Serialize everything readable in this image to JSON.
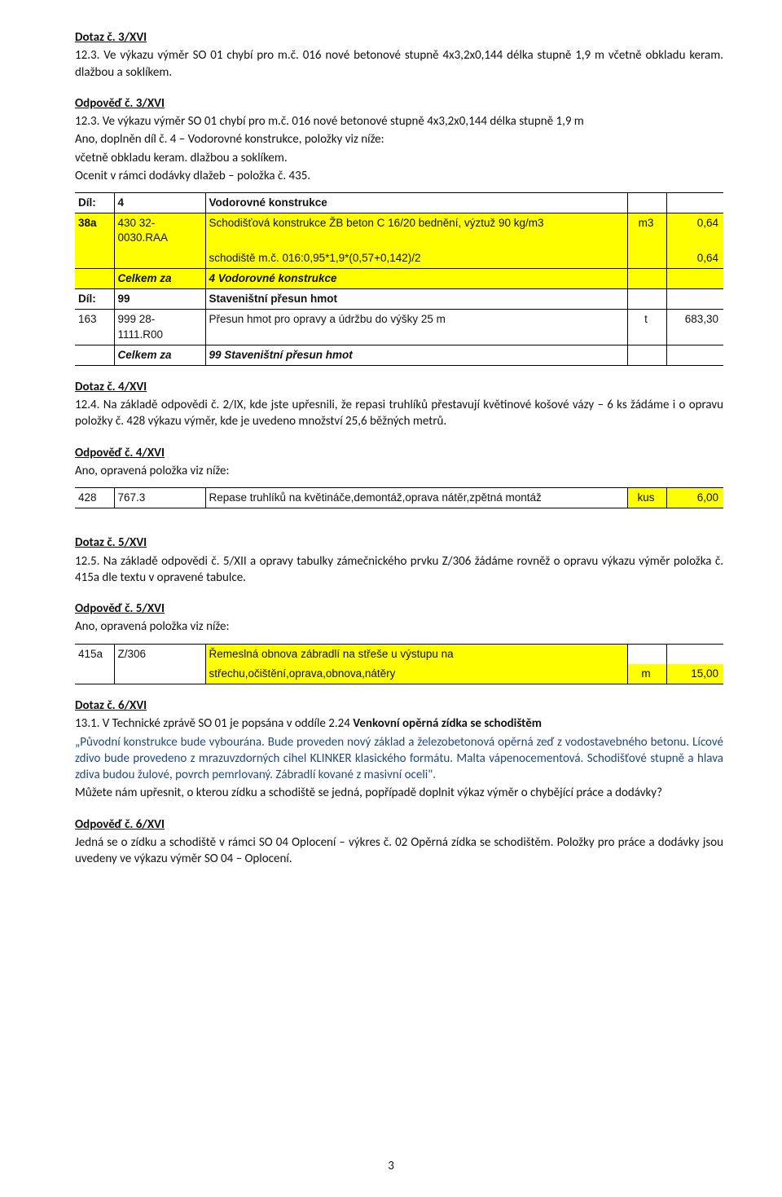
{
  "q3": {
    "title": "Dotaz č. 3/XVI",
    "text": "12.3. Ve výkazu výměr SO 01 chybí pro m.č. 016 nové betonové stupně 4x3,2x0,144 délka stupně 1,9 m včetně obkladu keram. dlažbou a soklíkem."
  },
  "a3": {
    "title": "Odpověď č. 3/XVI",
    "l1": "12.3. Ve výkazu výměr SO 01 chybí pro m.č. 016 nové betonové stupně 4x3,2x0,144 délka stupně 1,9 m",
    "l2": "Ano, doplněn díl č. 4 – Vodorovné konstrukce, položky viz níže:",
    "l3": "včetně obkladu keram. dlažbou a soklíkem.",
    "l4": "Ocenit v rámci dodávky dlažeb – položka č. 435."
  },
  "tbl1": {
    "r1": {
      "c0": "Díl:",
      "c1": "4",
      "c2": "Vodorovné konstrukce"
    },
    "r2": {
      "c0": "38a",
      "c1": "430 32-0030.RAA",
      "c2": "Schodišťová konstrukce ŽB beton C 16/20 bednění, výztuž 90 kg/m3",
      "c3": "m3",
      "c4": "0,64"
    },
    "r3": {
      "c2": "schodiště m.č. 016:0,95*1,9*(0,57+0,142)/2",
      "c4": "0,64"
    },
    "r4": {
      "c1": "Celkem za",
      "c2": "4 Vodorovné konstrukce"
    },
    "r5": {
      "c0": "Díl:",
      "c1": "99",
      "c2": "Staveništní přesun hmot"
    },
    "r6": {
      "c0": "163",
      "c1": "999 28-1111.R00",
      "c2": "Přesun hmot pro opravy a údržbu do výšky 25 m",
      "c3": "t",
      "c4": "683,30"
    },
    "r7": {
      "c1": "Celkem za",
      "c2": "99 Staveništní přesun hmot"
    }
  },
  "q4": {
    "title": "Dotaz č. 4/XVI",
    "text": "12.4. Na základě odpovědi č. 2/IX, kde jste upřesnili, že repasi truhlíků přestavují květinové košové vázy – 6 ks žádáme i o opravu položky č. 428 výkazu výměr, kde je uvedeno množství 25,6 běžných metrů."
  },
  "a4": {
    "title": "Odpověď č. 4/XVI",
    "text": "Ano, opravená položka viz níže:"
  },
  "tbl2": {
    "c0": "428",
    "c1": "767.3",
    "c2": "Repase truhlíků na květináče,demontáž,oprava nátěr,zpětná montáž",
    "c3": "kus",
    "c4": "6,00"
  },
  "q5": {
    "title": "Dotaz č. 5/XVI",
    "text": "12.5. Na základě odpovědi č. 5/XII a opravy tabulky zámečnického prvku Z/306 žádáme rovněž o opravu výkazu výměr položka č. 415a dle textu v opravené tabulce."
  },
  "a5": {
    "title": "Odpověď č. 5/XVI",
    "text": "Ano, opravená položka viz níže:"
  },
  "tbl3": {
    "c0": "415a",
    "c1": "Z/306",
    "c2a": "Řemeslná obnova zábradlí na střeše u výstupu na",
    "c2b": "střechu,očištění,oprava,obnova,nátěry",
    "c3": "m",
    "c4": "15,00"
  },
  "q6": {
    "title": "Dotaz č. 6/XVI",
    "l1a": "13.1. V Technické zprávě SO 01 je popsána v oddíle 2.24 ",
    "l1b": "Venkovní opěrná zídka se schodištěm",
    "l2": "„Původní konstrukce bude vybourána. Bude proveden nový základ a železobetonová opěrná zeď z vodostavebného betonu. Lícové zdivo bude provedeno z mrazuvzdorných cihel KLINKER klasického formátu. Malta vápenocementová. Schodišťové stupně a hlava zdiva budou žulové, povrch pemrlovaný. Zábradlí kované z masivní oceli\".",
    "l3": "Můžete nám upřesnit, o kterou zídku a schodiště se jedná, popřípadě doplnit výkaz výměr o chybějící práce a dodávky?"
  },
  "a6": {
    "title": "Odpověď č. 6/XVI",
    "text": "Jedná se o zídku a schodiště v rámci SO 04 Oplocení – výkres č. 02 Opěrná zídka se schodištěm. Položky pro práce a dodávky jsou uvedeny ve výkazu výměr SO 04 – Oplocení."
  },
  "pagenum": "3",
  "colors": {
    "highlight": "#ffff00",
    "blue": "#1f497d"
  }
}
